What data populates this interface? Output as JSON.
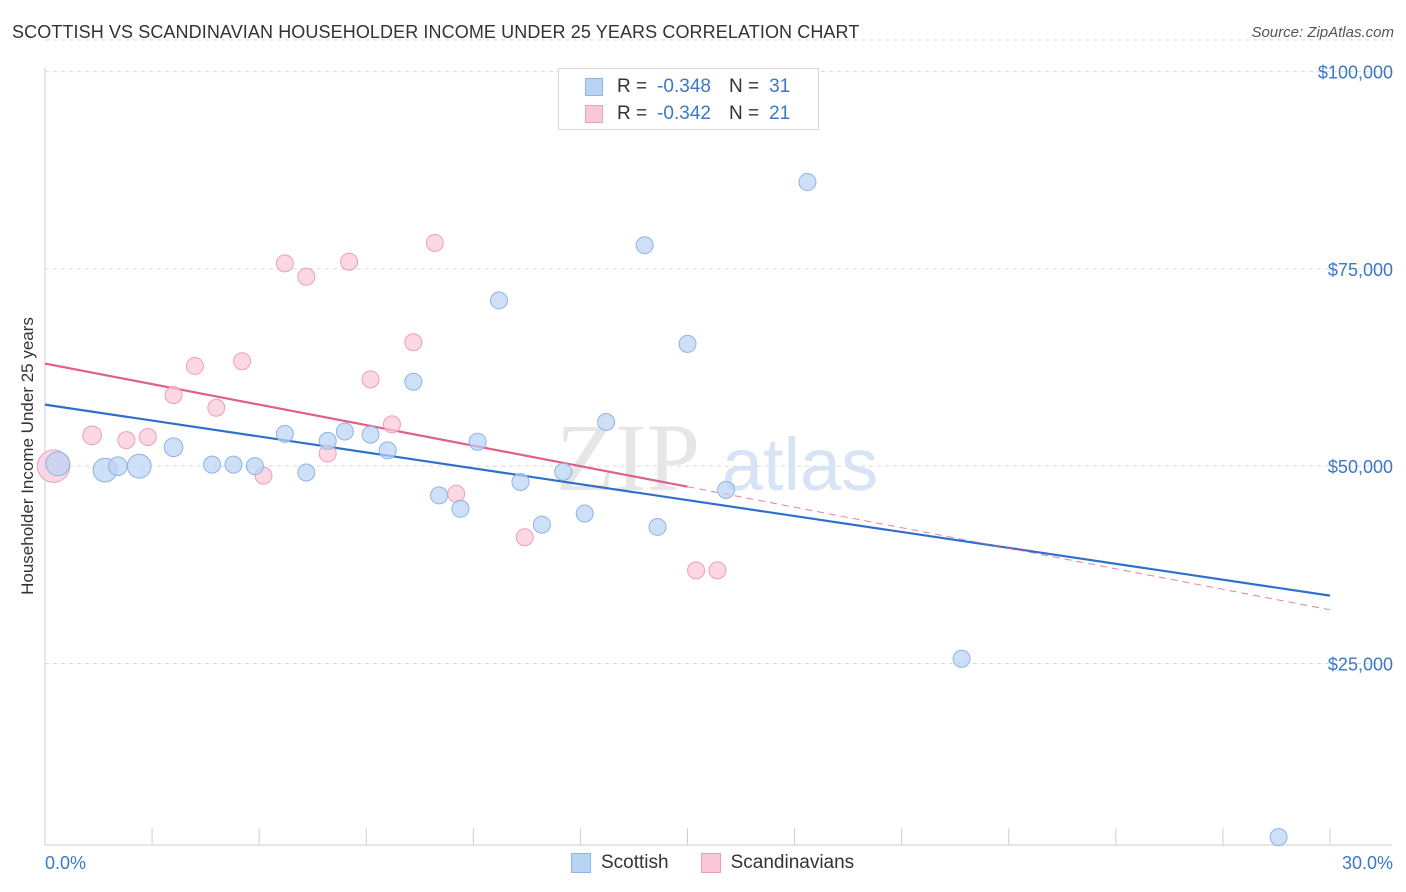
{
  "header": {
    "title": "SCOTTISH VS SCANDINAVIAN HOUSEHOLDER INCOME UNDER 25 YEARS CORRELATION CHART",
    "source": "Source: ZipAtlas.com"
  },
  "legend": {
    "rows": [
      {
        "r_label": "R =",
        "r_value": "-0.348",
        "n_label": "N =",
        "n_value": "31"
      },
      {
        "r_label": "R =",
        "r_value": "-0.342",
        "n_label": "N =",
        "n_value": "21"
      }
    ],
    "series_names": [
      "Scottish",
      "Scandinavians"
    ]
  },
  "watermark": {
    "zip": "ZIP",
    "atlas": "atlas"
  },
  "colors": {
    "scottish_fill": "#b9d3f3",
    "scottish_stroke": "#8db4e6",
    "scottish_line": "#2f6fcc",
    "scandinavian_fill": "#f9c8d7",
    "scandinavian_stroke": "#ee9fba",
    "scandinavian_line": "#e0608a",
    "tick_text": "#3a78c9",
    "grid": "#d8d8d8"
  },
  "chart_data": {
    "type": "scatter",
    "title": "SCOTTISH VS SCANDINAVIAN HOUSEHOLDER INCOME UNDER 25 YEARS CORRELATION CHART",
    "xlabel": "",
    "ylabel": "Householder Income Under 25 years",
    "xlim": [
      0,
      30
    ],
    "ylim": [
      2000,
      104000
    ],
    "x_tick_labels": [
      "0.0%",
      "30.0%"
    ],
    "y_ticks": [
      25000,
      50000,
      75000,
      100000
    ],
    "y_tick_labels": [
      "$25,000",
      "$50,000",
      "$75,000",
      "$100,000"
    ],
    "grid": true,
    "series": [
      {
        "name": "Scottish",
        "r": -0.348,
        "n": 31,
        "points": [
          {
            "x": 0.3,
            "y": 50300,
            "s": 1.4
          },
          {
            "x": 1.4,
            "y": 49500,
            "s": 1.4
          },
          {
            "x": 1.7,
            "y": 50000,
            "s": 1.1
          },
          {
            "x": 2.2,
            "y": 50000,
            "s": 1.4
          },
          {
            "x": 3.0,
            "y": 52400,
            "s": 1.1
          },
          {
            "x": 3.9,
            "y": 50200,
            "s": 1.0
          },
          {
            "x": 4.4,
            "y": 50200,
            "s": 1.0
          },
          {
            "x": 4.9,
            "y": 50000,
            "s": 1.0
          },
          {
            "x": 5.6,
            "y": 54100,
            "s": 1.0
          },
          {
            "x": 6.1,
            "y": 49200,
            "s": 1.0
          },
          {
            "x": 6.6,
            "y": 53200,
            "s": 1.0
          },
          {
            "x": 7.0,
            "y": 54400,
            "s": 1.0
          },
          {
            "x": 7.6,
            "y": 54000,
            "s": 1.0
          },
          {
            "x": 8.0,
            "y": 52000,
            "s": 1.0
          },
          {
            "x": 8.6,
            "y": 60700,
            "s": 1.0
          },
          {
            "x": 9.2,
            "y": 46300,
            "s": 1.0
          },
          {
            "x": 9.7,
            "y": 44600,
            "s": 1.0
          },
          {
            "x": 10.1,
            "y": 53100,
            "s": 1.0
          },
          {
            "x": 10.6,
            "y": 71000,
            "s": 1.0
          },
          {
            "x": 11.1,
            "y": 48000,
            "s": 1.0
          },
          {
            "x": 11.6,
            "y": 42600,
            "s": 1.0
          },
          {
            "x": 12.1,
            "y": 49300,
            "s": 1.0
          },
          {
            "x": 12.6,
            "y": 44000,
            "s": 1.0
          },
          {
            "x": 13.1,
            "y": 55600,
            "s": 1.0
          },
          {
            "x": 14.0,
            "y": 78000,
            "s": 1.0
          },
          {
            "x": 14.3,
            "y": 42300,
            "s": 1.0
          },
          {
            "x": 15.0,
            "y": 65500,
            "s": 1.0
          },
          {
            "x": 15.9,
            "y": 47000,
            "s": 1.0
          },
          {
            "x": 17.8,
            "y": 86000,
            "s": 1.0
          },
          {
            "x": 21.4,
            "y": 25600,
            "s": 1.0
          },
          {
            "x": 28.8,
            "y": 3000,
            "s": 1.0
          }
        ],
        "trend": {
          "x": [
            0,
            30
          ],
          "y": [
            57800,
            33600
          ]
        }
      },
      {
        "name": "Scandinavians",
        "r": -0.342,
        "n": 21,
        "points": [
          {
            "x": 0.2,
            "y": 50000,
            "s": 1.9
          },
          {
            "x": 1.1,
            "y": 53900,
            "s": 1.1
          },
          {
            "x": 1.9,
            "y": 53300,
            "s": 1.0
          },
          {
            "x": 2.4,
            "y": 53700,
            "s": 1.0
          },
          {
            "x": 3.0,
            "y": 59000,
            "s": 1.0
          },
          {
            "x": 3.5,
            "y": 62700,
            "s": 1.0
          },
          {
            "x": 4.0,
            "y": 57400,
            "s": 1.0
          },
          {
            "x": 4.6,
            "y": 63300,
            "s": 1.0
          },
          {
            "x": 5.1,
            "y": 48800,
            "s": 1.0
          },
          {
            "x": 5.6,
            "y": 75700,
            "s": 1.0
          },
          {
            "x": 6.1,
            "y": 74000,
            "s": 1.0
          },
          {
            "x": 6.6,
            "y": 51600,
            "s": 1.0
          },
          {
            "x": 7.1,
            "y": 75900,
            "s": 1.0
          },
          {
            "x": 7.6,
            "y": 61000,
            "s": 1.0
          },
          {
            "x": 8.1,
            "y": 55300,
            "s": 1.0
          },
          {
            "x": 8.6,
            "y": 65700,
            "s": 1.0
          },
          {
            "x": 9.1,
            "y": 78300,
            "s": 1.0
          },
          {
            "x": 9.6,
            "y": 46500,
            "s": 1.0
          },
          {
            "x": 11.2,
            "y": 41000,
            "s": 1.0
          },
          {
            "x": 15.2,
            "y": 36800,
            "s": 1.0
          },
          {
            "x": 15.7,
            "y": 36800,
            "s": 1.0
          }
        ],
        "trend": {
          "x": [
            0,
            15
          ],
          "y": [
            63000,
            47400
          ]
        },
        "trend_extension": {
          "x": [
            15,
            30
          ],
          "y": [
            47400,
            31800
          ]
        }
      }
    ]
  }
}
